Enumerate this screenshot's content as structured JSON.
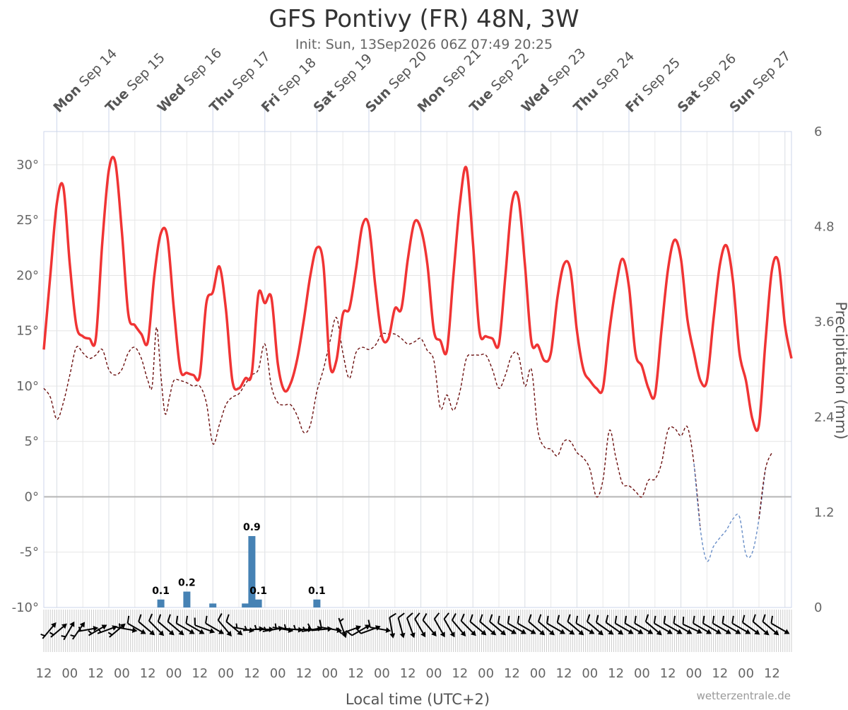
{
  "chart_data": {
    "type": "line",
    "title": "GFS Pontivy (FR) 48N, 3W",
    "subtitle": "Init: Sun, 13Sep2026 06Z 07:49 20:25",
    "xlabel": "Local time (UTC+2)",
    "ylabel_right": "Precipitation (mm)",
    "credit": "wetterzentrale.de",
    "grid": true,
    "x_unit": "hours since Sep 13 00:00 local time",
    "x_range": [
      18,
      363
    ],
    "y_left": {
      "ticks": [
        "30°",
        "25°",
        "20°",
        "15°",
        "10°",
        "5°",
        "0°",
        "-5°",
        "-10°"
      ],
      "range": [
        -10,
        33
      ]
    },
    "y_right": {
      "ticks": [
        "6",
        "4.8",
        "3.6",
        "2.4",
        "1.2",
        "0"
      ],
      "range": [
        0,
        6
      ]
    },
    "top_axis": {
      "days": [
        {
          "dow": "Mon",
          "date": "Sep 14"
        },
        {
          "dow": "Tue",
          "date": "Sep 15"
        },
        {
          "dow": "Wed",
          "date": "Sep 16"
        },
        {
          "dow": "Thu",
          "date": "Sep 17"
        },
        {
          "dow": "Fri",
          "date": "Sep 18"
        },
        {
          "dow": "Sat",
          "date": "Sep 19"
        },
        {
          "dow": "Sun",
          "date": "Sep 20"
        },
        {
          "dow": "Mon",
          "date": "Sep 21"
        },
        {
          "dow": "Tue",
          "date": "Sep 22"
        },
        {
          "dow": "Wed",
          "date": "Sep 23"
        },
        {
          "dow": "Thu",
          "date": "Sep 24"
        },
        {
          "dow": "Fri",
          "date": "Sep 25"
        },
        {
          "dow": "Sat",
          "date": "Sep 26"
        },
        {
          "dow": "Sun",
          "date": "Sep 27"
        }
      ]
    },
    "bottom_axis": {
      "labels": [
        "12",
        "00",
        "12",
        "00",
        "12",
        "00",
        "12",
        "00",
        "12",
        "00",
        "12",
        "00",
        "12",
        "00",
        "12",
        "00",
        "12",
        "00",
        "12",
        "00",
        "12",
        "00",
        "12",
        "00",
        "12",
        "00",
        "12",
        "00",
        "12"
      ]
    },
    "series": [
      {
        "name": "Temperature (2 m)",
        "color": "#f03434",
        "style": "solid",
        "points": [
          [
            18,
            13.3
          ],
          [
            21,
            20
          ],
          [
            24,
            26.5
          ],
          [
            27,
            28
          ],
          [
            30,
            21
          ],
          [
            33,
            15.5
          ],
          [
            36,
            14.5
          ],
          [
            39,
            14.3
          ],
          [
            42,
            14.3
          ],
          [
            45,
            23
          ],
          [
            48,
            29.5
          ],
          [
            51,
            30.2
          ],
          [
            54,
            24
          ],
          [
            57,
            16.5
          ],
          [
            60,
            15.5
          ],
          [
            63,
            14.7
          ],
          [
            66,
            14
          ],
          [
            69,
            20
          ],
          [
            72,
            23.8
          ],
          [
            75,
            23.5
          ],
          [
            78,
            17
          ],
          [
            81,
            11.5
          ],
          [
            84,
            11.2
          ],
          [
            87,
            11
          ],
          [
            90,
            11
          ],
          [
            93,
            17.5
          ],
          [
            96,
            18.5
          ],
          [
            99,
            20.8
          ],
          [
            102,
            17
          ],
          [
            105,
            10.5
          ],
          [
            108,
            9.8
          ],
          [
            111,
            10.7
          ],
          [
            114,
            11.2
          ],
          [
            117,
            18.3
          ],
          [
            120,
            17.5
          ],
          [
            123,
            18
          ],
          [
            126,
            12
          ],
          [
            129,
            9.6
          ],
          [
            132,
            10.3
          ],
          [
            135,
            12.5
          ],
          [
            138,
            16
          ],
          [
            141,
            20
          ],
          [
            144,
            22.5
          ],
          [
            147,
            21
          ],
          [
            150,
            12
          ],
          [
            153,
            12.3
          ],
          [
            156,
            16.5
          ],
          [
            159,
            17
          ],
          [
            162,
            20.5
          ],
          [
            165,
            24.5
          ],
          [
            168,
            24.5
          ],
          [
            171,
            19
          ],
          [
            174,
            14.5
          ],
          [
            177,
            14.3
          ],
          [
            180,
            17
          ],
          [
            183,
            17
          ],
          [
            186,
            21.5
          ],
          [
            189,
            24.8
          ],
          [
            192,
            24.2
          ],
          [
            195,
            21
          ],
          [
            198,
            15
          ],
          [
            201,
            14.1
          ],
          [
            204,
            13.2
          ],
          [
            207,
            20
          ],
          [
            210,
            26.5
          ],
          [
            213,
            29.7
          ],
          [
            216,
            23
          ],
          [
            219,
            15
          ],
          [
            222,
            14.5
          ],
          [
            225,
            14.3
          ],
          [
            228,
            13.8
          ],
          [
            231,
            20
          ],
          [
            234,
            26.5
          ],
          [
            237,
            27
          ],
          [
            240,
            21
          ],
          [
            243,
            14
          ],
          [
            246,
            13.7
          ],
          [
            249,
            12.3
          ],
          [
            252,
            13
          ],
          [
            255,
            18
          ],
          [
            258,
            21
          ],
          [
            261,
            20.5
          ],
          [
            264,
            15
          ],
          [
            267,
            11.5
          ],
          [
            270,
            10.5
          ],
          [
            273,
            9.8
          ],
          [
            276,
            9.8
          ],
          [
            279,
            15
          ],
          [
            282,
            19
          ],
          [
            285,
            21.5
          ],
          [
            288,
            19
          ],
          [
            291,
            13
          ],
          [
            294,
            11.8
          ],
          [
            297,
            9.8
          ],
          [
            300,
            9.2
          ],
          [
            303,
            15
          ],
          [
            306,
            20.5
          ],
          [
            309,
            23.2
          ],
          [
            312,
            21.5
          ],
          [
            315,
            16
          ],
          [
            318,
            13
          ],
          [
            321,
            10.5
          ],
          [
            324,
            10.5
          ],
          [
            327,
            16
          ],
          [
            330,
            21
          ],
          [
            333,
            22.7
          ],
          [
            336,
            19.5
          ],
          [
            339,
            13
          ],
          [
            342,
            10.5
          ],
          [
            345,
            7
          ],
          [
            348,
            6.5
          ],
          [
            351,
            14
          ],
          [
            354,
            20.5
          ],
          [
            357,
            21.2
          ],
          [
            360,
            15.5
          ],
          [
            363,
            12.5
          ]
        ]
      },
      {
        "name": "Dew point",
        "color": "#6b0f0f",
        "style": "dashed",
        "points": [
          [
            18,
            9.8
          ],
          [
            21,
            9
          ],
          [
            24,
            7
          ],
          [
            27,
            8.5
          ],
          [
            30,
            11
          ],
          [
            33,
            13.5
          ],
          [
            36,
            13
          ],
          [
            39,
            12.5
          ],
          [
            42,
            12.8
          ],
          [
            45,
            13.3
          ],
          [
            48,
            11.5
          ],
          [
            51,
            11
          ],
          [
            54,
            11.5
          ],
          [
            57,
            13
          ],
          [
            60,
            13.5
          ],
          [
            63,
            12.5
          ],
          [
            66,
            10.5
          ],
          [
            68,
            10
          ],
          [
            70,
            15.3
          ],
          [
            72,
            11
          ],
          [
            74,
            7.5
          ],
          [
            76,
            9
          ],
          [
            78,
            10.5
          ],
          [
            81,
            10.5
          ],
          [
            84,
            10.3
          ],
          [
            87,
            10
          ],
          [
            90,
            10
          ],
          [
            93,
            8.5
          ],
          [
            96,
            4.8
          ],
          [
            99,
            6.5
          ],
          [
            102,
            8.3
          ],
          [
            105,
            9
          ],
          [
            108,
            9.3
          ],
          [
            111,
            10.2
          ],
          [
            114,
            11
          ],
          [
            117,
            11.5
          ],
          [
            120,
            13.8
          ],
          [
            123,
            10
          ],
          [
            126,
            8.5
          ],
          [
            129,
            8.3
          ],
          [
            132,
            8.3
          ],
          [
            135,
            7.3
          ],
          [
            138,
            5.8
          ],
          [
            141,
            6.5
          ],
          [
            144,
            9.5
          ],
          [
            147,
            11.5
          ],
          [
            150,
            14
          ],
          [
            153,
            16.2
          ],
          [
            156,
            13
          ],
          [
            159,
            10.7
          ],
          [
            162,
            13
          ],
          [
            165,
            13.5
          ],
          [
            168,
            13.3
          ],
          [
            171,
            13.7
          ],
          [
            174,
            14.7
          ],
          [
            177,
            14.7
          ],
          [
            180,
            14.7
          ],
          [
            183,
            14.3
          ],
          [
            186,
            13.8
          ],
          [
            189,
            14
          ],
          [
            192,
            14.3
          ],
          [
            195,
            13.2
          ],
          [
            198,
            12.3
          ],
          [
            201,
            8
          ],
          [
            204,
            9.2
          ],
          [
            207,
            7.8
          ],
          [
            210,
            9.5
          ],
          [
            213,
            12.5
          ],
          [
            216,
            12.8
          ],
          [
            219,
            12.8
          ],
          [
            222,
            12.8
          ],
          [
            225,
            11.5
          ],
          [
            228,
            9.8
          ],
          [
            231,
            11
          ],
          [
            234,
            12.8
          ],
          [
            237,
            12.8
          ],
          [
            240,
            10
          ],
          [
            243,
            11.5
          ],
          [
            246,
            6
          ],
          [
            249,
            4.5
          ],
          [
            252,
            4.3
          ],
          [
            255,
            3.7
          ],
          [
            258,
            5
          ],
          [
            261,
            5
          ],
          [
            264,
            4
          ],
          [
            267,
            3.5
          ],
          [
            270,
            2.5
          ],
          [
            273,
            0
          ],
          [
            276,
            1.5
          ],
          [
            279,
            6
          ],
          [
            282,
            3.5
          ],
          [
            285,
            1.2
          ],
          [
            288,
            1
          ],
          [
            291,
            0.5
          ],
          [
            294,
            0
          ],
          [
            297,
            1.5
          ],
          [
            300,
            1.6
          ],
          [
            303,
            3
          ],
          [
            306,
            6
          ],
          [
            309,
            6.2
          ],
          [
            312,
            5.5
          ],
          [
            315,
            6.3
          ],
          [
            318,
            3
          ],
          [
            321,
            -3
          ],
          [
            324,
            -5.8
          ],
          [
            327,
            -4.5
          ],
          [
            330,
            -3.7
          ],
          [
            333,
            -3
          ],
          [
            336,
            -2
          ],
          [
            339,
            -1.8
          ],
          [
            342,
            -5.2
          ],
          [
            345,
            -5
          ],
          [
            348,
            -2
          ],
          [
            351,
            2.5
          ],
          [
            354,
            4
          ]
        ]
      }
    ],
    "precipitation": {
      "unit": "mm",
      "color": "#4682b4",
      "bars": [
        {
          "x": 72,
          "value": 0.1,
          "label": "0.1"
        },
        {
          "x": 84,
          "value": 0.2,
          "label": "0.2"
        },
        {
          "x": 96,
          "value": 0.05,
          "label": ""
        },
        {
          "x": 111,
          "value": 0.05,
          "label": ""
        },
        {
          "x": 114,
          "value": 0.9,
          "label": "0.9"
        },
        {
          "x": 117,
          "value": 0.1,
          "label": "0.1"
        },
        {
          "x": 144,
          "value": 0.1,
          "label": "0.1"
        }
      ]
    },
    "wind_barbs": {
      "directions_deg": [
        220,
        230,
        210,
        215,
        260,
        240,
        250,
        230,
        280,
        300,
        310,
        315,
        310,
        310,
        300,
        300,
        290,
        300,
        320,
        310,
        280,
        265,
        270,
        260,
        280,
        275,
        270,
        260,
        265,
        280,
        340,
        250,
        240,
        250,
        280,
        350,
        345,
        340,
        330,
        320,
        330,
        330,
        320,
        315,
        310,
        310,
        310,
        300,
        300,
        300,
        310,
        310,
        300,
        305,
        310,
        300,
        310,
        305,
        305,
        300,
        300,
        300,
        310,
        300,
        300,
        300,
        295,
        300,
        300,
        300,
        300,
        300,
        305,
        310,
        310,
        300
      ],
      "speeds_kt": [
        5,
        5,
        5,
        5,
        5,
        5,
        5,
        5,
        5,
        10,
        10,
        10,
        10,
        10,
        10,
        10,
        10,
        10,
        10,
        10,
        5,
        5,
        5,
        5,
        5,
        5,
        5,
        5,
        10,
        10,
        5,
        10,
        10,
        10,
        10,
        10,
        10,
        10,
        10,
        10,
        10,
        10,
        10,
        10,
        10,
        10,
        10,
        10,
        10,
        10,
        10,
        10,
        10,
        10,
        10,
        10,
        10,
        10,
        10,
        10,
        10,
        10,
        10,
        10,
        10,
        10,
        10,
        10,
        10,
        10,
        10,
        10,
        10,
        10,
        10,
        10
      ]
    }
  }
}
